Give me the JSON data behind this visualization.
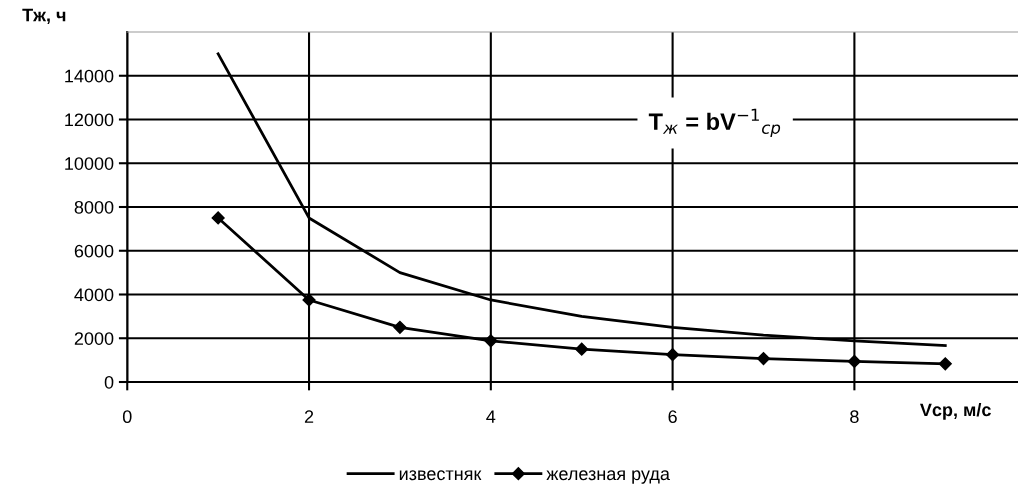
{
  "chart_data": {
    "type": "line",
    "x": [
      1,
      2,
      3,
      4,
      5,
      6,
      7,
      8,
      9
    ],
    "series": [
      {
        "name": "известняк",
        "color": "#000000",
        "marker": "none",
        "values": [
          15000,
          7500,
          5000,
          3750,
          3000,
          2500,
          2140,
          1880,
          1670
        ]
      },
      {
        "name": "железная руда",
        "color": "#000000",
        "marker": "diamond",
        "values": [
          7500,
          3750,
          2500,
          1880,
          1500,
          1250,
          1070,
          940,
          830
        ]
      }
    ],
    "xlabel": "Vср, м/с",
    "ylabel": "Tж, ч",
    "xlim": [
      0,
      9.8
    ],
    "xticks": [
      0,
      2,
      4,
      6,
      8
    ],
    "ylim": [
      0,
      16000
    ],
    "yticks": [
      0,
      2000,
      4000,
      6000,
      8000,
      10000,
      12000,
      14000
    ],
    "grid": true,
    "legend": "bottom",
    "line_style": "solid",
    "annotations": [
      "T$_{ж}$ = bV$^{−1}$$_{ср}$"
    ]
  }
}
